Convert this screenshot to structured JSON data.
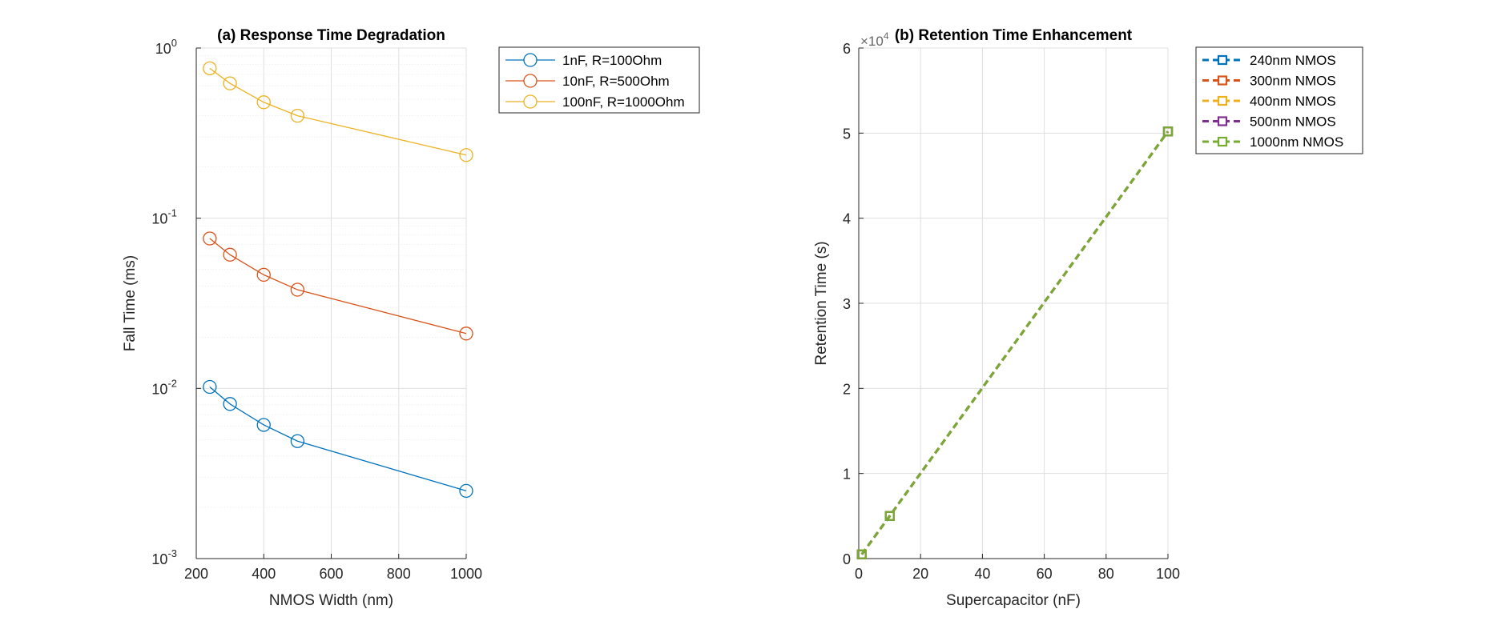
{
  "chart_data": [
    {
      "type": "line",
      "title": "(a) Response Time Degradation",
      "xlabel": "NMOS Width (nm)",
      "ylabel": "Fall Time (ms)",
      "xlim": [
        200,
        1000
      ],
      "ylim": [
        0.001,
        1
      ],
      "yscale": "log",
      "xticks": [
        200,
        400,
        600,
        800,
        1000
      ],
      "yticks": [
        {
          "base": "10",
          "exp": "-3",
          "value": 0.001
        },
        {
          "base": "10",
          "exp": "-2",
          "value": 0.01
        },
        {
          "base": "10",
          "exp": "-1",
          "value": 0.1
        },
        {
          "base": "10",
          "exp": "0",
          "value": 1
        }
      ],
      "grid": true,
      "legend_position": "outside-right-top",
      "x": [
        240,
        300,
        400,
        500,
        1000
      ],
      "series": [
        {
          "name": "1nF, R=100Ohm",
          "color": "#0072BD",
          "marker": "circle",
          "values": [
            0.0102,
            0.0081,
            0.0061,
            0.0049,
            0.0025
          ]
        },
        {
          "name": "10nF, R=500Ohm",
          "color": "#D95319",
          "marker": "circle",
          "values": [
            0.076,
            0.061,
            0.0465,
            0.038,
            0.021
          ]
        },
        {
          "name": "100nF, R=1000Ohm",
          "color": "#EDB120",
          "marker": "circle",
          "values": [
            0.76,
            0.62,
            0.48,
            0.4,
            0.235
          ]
        }
      ]
    },
    {
      "type": "line",
      "title": "(b) Retention Time Enhancement",
      "xlabel": "Supercapacitor (nF)",
      "ylabel": "Retention Time (s)",
      "xlim": [
        0,
        100
      ],
      "ylim": [
        0,
        6
      ],
      "xticks": [
        0,
        20,
        40,
        60,
        80,
        100
      ],
      "yticks": [
        0,
        1,
        2,
        3,
        4,
        5,
        6
      ],
      "exponent_label": {
        "base": "×10",
        "exp": "4"
      },
      "grid": true,
      "legend_position": "outside-right-top",
      "x": [
        1,
        10,
        100
      ],
      "series": [
        {
          "name": "240nm NMOS",
          "color": "#0072BD",
          "marker": "square",
          "values": [
            0.05,
            0.5,
            5.02
          ]
        },
        {
          "name": "300nm NMOS",
          "color": "#D95319",
          "marker": "square",
          "values": [
            0.05,
            0.5,
            5.02
          ]
        },
        {
          "name": "400nm NMOS",
          "color": "#EDB120",
          "marker": "square",
          "values": [
            0.05,
            0.5,
            5.02
          ]
        },
        {
          "name": "500nm NMOS",
          "color": "#7E2F8E",
          "marker": "square",
          "values": [
            0.05,
            0.5,
            5.02
          ]
        },
        {
          "name": "1000nm NMOS",
          "color": "#77AC30",
          "marker": "square",
          "values": [
            0.05,
            0.5,
            5.02
          ]
        }
      ]
    }
  ]
}
